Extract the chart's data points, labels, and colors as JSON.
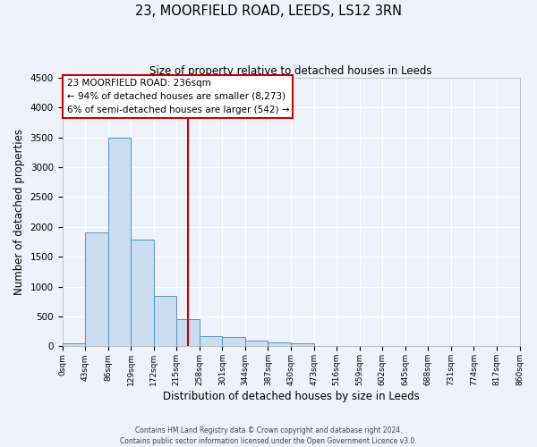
{
  "title": "23, MOORFIELD ROAD, LEEDS, LS12 3RN",
  "subtitle": "Size of property relative to detached houses in Leeds",
  "xlabel": "Distribution of detached houses by size in Leeds",
  "ylabel": "Number of detached properties",
  "bin_labels": [
    "0sqm",
    "43sqm",
    "86sqm",
    "129sqm",
    "172sqm",
    "215sqm",
    "258sqm",
    "301sqm",
    "344sqm",
    "387sqm",
    "430sqm",
    "473sqm",
    "516sqm",
    "559sqm",
    "602sqm",
    "645sqm",
    "688sqm",
    "731sqm",
    "774sqm",
    "817sqm",
    "860sqm"
  ],
  "bin_edges": [
    0,
    43,
    86,
    129,
    172,
    215,
    258,
    301,
    344,
    387,
    430,
    473,
    516,
    559,
    602,
    645,
    688,
    731,
    774,
    817,
    860
  ],
  "bar_heights": [
    50,
    1900,
    3500,
    1780,
    850,
    460,
    170,
    160,
    90,
    60,
    50,
    0,
    0,
    0,
    0,
    0,
    0,
    0,
    0,
    0
  ],
  "bar_color": "#c9dcf0",
  "bar_edge_color": "#5b8fc9",
  "vline_x": 236,
  "vline_color": "#cc0000",
  "annotation_title": "23 MOORFIELD ROAD: 236sqm",
  "annotation_line1": "← 94% of detached houses are smaller (8,273)",
  "annotation_line2": "6% of semi-detached houses are larger (542) →",
  "annotation_box_color": "#cc0000",
  "ylim": [
    0,
    4500
  ],
  "yticks": [
    0,
    500,
    1000,
    1500,
    2000,
    2500,
    3000,
    3500,
    4000,
    4500
  ],
  "background_color": "#eef2fa",
  "grid_color": "#ffffff",
  "footer_line1": "Contains HM Land Registry data © Crown copyright and database right 2024.",
  "footer_line2": "Contains public sector information licensed under the Open Government Licence v3.0."
}
